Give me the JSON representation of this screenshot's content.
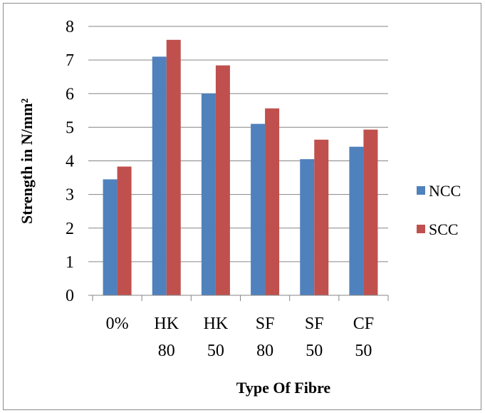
{
  "chart_data": {
    "type": "bar",
    "categories": [
      [
        "0%"
      ],
      [
        "HK",
        "80"
      ],
      [
        "HK",
        "50"
      ],
      [
        "SF",
        "80"
      ],
      [
        "SF",
        "50"
      ],
      [
        "CF",
        "50"
      ]
    ],
    "series": [
      {
        "name": "NCC",
        "color": "#4F81BD",
        "values": [
          3.45,
          7.1,
          6.0,
          5.1,
          4.05,
          4.42
        ]
      },
      {
        "name": "SCC",
        "color": "#C0504D",
        "values": [
          3.83,
          7.6,
          6.84,
          5.56,
          4.63,
          4.93
        ]
      }
    ],
    "xlabel": "Type Of Fibre",
    "ylabel": "Strength in N/mm²",
    "ylim": [
      0,
      8
    ],
    "yticks": [
      "0",
      "1",
      "2",
      "3",
      "4",
      "5",
      "6",
      "7",
      "8"
    ],
    "grid": true,
    "gridline_color": "#868686",
    "legend_position": "right"
  }
}
